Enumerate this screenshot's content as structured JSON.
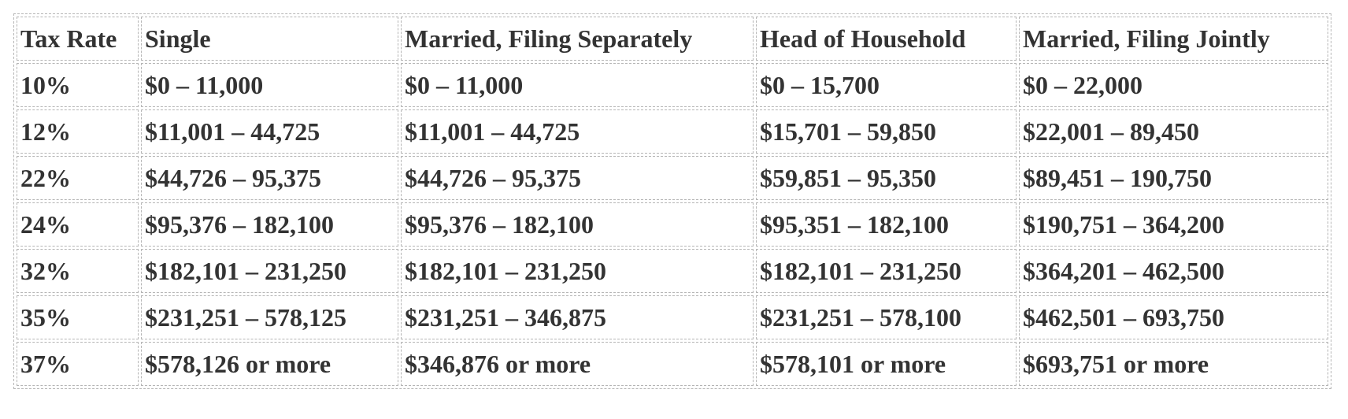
{
  "table": {
    "header": [
      "Tax Rate",
      "Single",
      "Married, Filing Separately",
      "Head of Household",
      "Married, Filing Jointly"
    ],
    "rows": [
      [
        "10%",
        "$0 – 11,000",
        "$0 – 11,000",
        "$0 – 15,700",
        "$0 – 22,000"
      ],
      [
        "12%",
        "$11,001 – 44,725",
        "$11,001 – 44,725",
        "$15,701 – 59,850",
        "$22,001 – 89,450"
      ],
      [
        "22%",
        "$44,726 – 95,375",
        "$44,726 – 95,375",
        "$59,851 – 95,350",
        "$89,451 – 190,750"
      ],
      [
        "24%",
        "$95,376 – 182,100",
        "$95,376 – 182,100",
        "$95,351 – 182,100",
        "$190,751 – 364,200"
      ],
      [
        "32%",
        "$182,101 – 231,250",
        "$182,101 – 231,250",
        "$182,101 – 231,250",
        "$364,201 – 462,500"
      ],
      [
        "35%",
        "$231,251 – 578,125",
        "$231,251 – 346,875",
        "$231,251 – 578,100",
        "$462,501 – 693,750"
      ],
      [
        "37%",
        "$578,126 or more",
        "$346,876 or more",
        "$578,101 or more",
        "$693,751 or more"
      ]
    ]
  }
}
